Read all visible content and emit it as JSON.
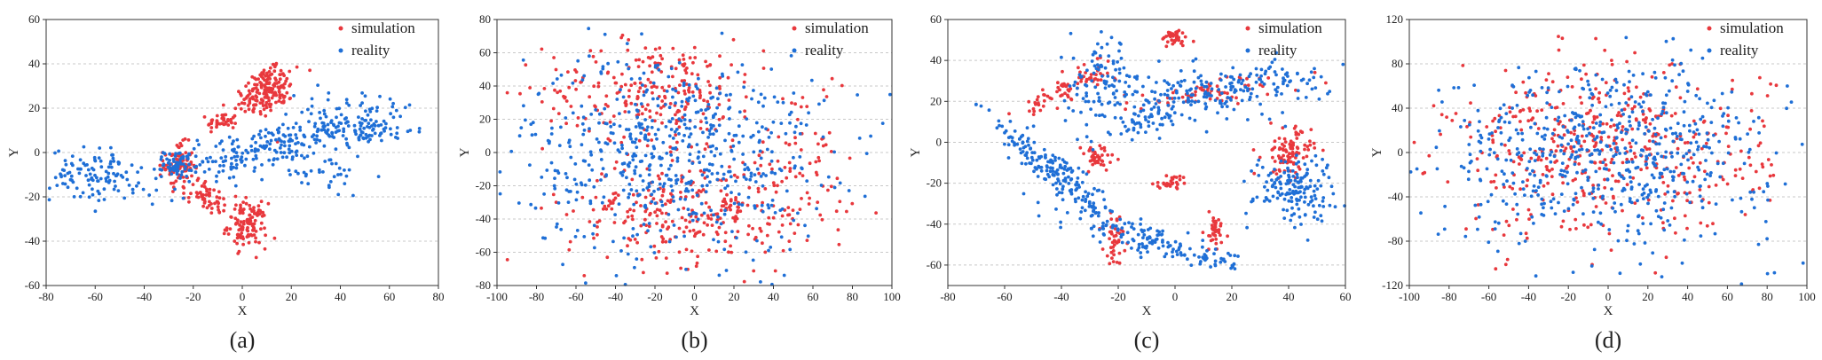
{
  "figure": {
    "colors": {
      "simulation": "#e8383d",
      "reality": "#1f6fd6",
      "grid": "#c8c8c8",
      "axis": "#333333"
    }
  },
  "chart_data": [
    {
      "type": "scatter",
      "panel_label": "(a)",
      "xlabel": "X",
      "ylabel": "Y",
      "xlim": [
        -80,
        80
      ],
      "ylim": [
        -60,
        60
      ],
      "xticks": [
        -80,
        -60,
        -40,
        -20,
        0,
        20,
        40,
        60,
        80
      ],
      "yticks": [
        -60,
        -40,
        -20,
        0,
        20,
        40,
        60
      ],
      "grid": "horizontal-dashed",
      "legend": "top-right",
      "series": [
        {
          "name": "simulation",
          "color": "#e8383d",
          "clusters": [
            {
              "x": 10,
              "y": 28,
              "sx": 7,
              "sy": 5,
              "n": 180,
              "angle": 38
            },
            {
              "x": -8,
              "y": 14,
              "sx": 3,
              "sy": 2,
              "n": 40,
              "angle": 0
            },
            {
              "x": -26,
              "y": -6,
              "sx": 3,
              "sy": 5,
              "n": 90,
              "angle": 0
            },
            {
              "x": -14,
              "y": -20,
              "sx": 5,
              "sy": 3,
              "n": 60,
              "angle": -30
            },
            {
              "x": 2,
              "y": -33,
              "sx": 4,
              "sy": 5,
              "n": 120,
              "angle": 0
            }
          ]
        },
        {
          "name": "reality",
          "color": "#1f6fd6",
          "clusters": [
            {
              "x": -60,
              "y": -10,
              "sx": 9,
              "sy": 6,
              "n": 110,
              "angle": 0
            },
            {
              "x": -26,
              "y": -5,
              "sx": 3,
              "sy": 3,
              "n": 60,
              "angle": 0
            },
            {
              "x": 10,
              "y": 2,
              "sx": 25,
              "sy": 5,
              "n": 220,
              "angle": 18
            },
            {
              "x": 50,
              "y": 10,
              "sx": 10,
              "sy": 3,
              "n": 80,
              "angle": 0
            },
            {
              "x": 28,
              "y": -10,
              "sx": 12,
              "sy": 5,
              "n": 40,
              "angle": 0
            },
            {
              "x": 45,
              "y": 20,
              "sx": 12,
              "sy": 5,
              "n": 30,
              "angle": 0
            }
          ]
        }
      ]
    },
    {
      "type": "scatter",
      "panel_label": "(b)",
      "xlabel": "X",
      "ylabel": "Y",
      "xlim": [
        -100,
        100
      ],
      "ylim": [
        -80,
        80
      ],
      "xticks": [
        -100,
        -80,
        -60,
        -40,
        -20,
        0,
        20,
        40,
        60,
        80,
        100
      ],
      "yticks": [
        -80,
        -60,
        -40,
        -20,
        0,
        20,
        40,
        60,
        80
      ],
      "grid": "horizontal-dashed",
      "legend": "top-right",
      "series": [
        {
          "name": "simulation",
          "color": "#e8383d",
          "clusters": [
            {
              "x": -20,
              "y": 38,
              "sx": 28,
              "sy": 15,
              "n": 240,
              "angle": 0
            },
            {
              "x": 0,
              "y": -35,
              "sx": 32,
              "sy": 16,
              "n": 300,
              "angle": 0
            },
            {
              "x": 55,
              "y": -5,
              "sx": 12,
              "sy": 25,
              "n": 60,
              "angle": 0
            }
          ]
        },
        {
          "name": "reality",
          "color": "#1f6fd6",
          "clusters": [
            {
              "x": -10,
              "y": 0,
              "sx": 38,
              "sy": 30,
              "n": 600,
              "angle": 0
            }
          ]
        }
      ]
    },
    {
      "type": "scatter",
      "panel_label": "(c)",
      "xlabel": "X",
      "ylabel": "Y",
      "xlim": [
        -80,
        60
      ],
      "ylim": [
        -70,
        60
      ],
      "xticks": [
        -80,
        -60,
        -40,
        -20,
        0,
        20,
        40,
        60
      ],
      "yticks": [
        -60,
        -40,
        -20,
        0,
        20,
        40,
        60
      ],
      "grid": "horizontal-dashed",
      "legend": "top-right",
      "series": [
        {
          "name": "simulation",
          "color": "#e8383d",
          "clusters": [
            {
              "x": 0,
              "y": 51,
              "sx": 2.5,
              "sy": 2,
              "n": 40,
              "angle": 0
            },
            {
              "x": -42,
              "y": 24,
              "sx": 6,
              "sy": 2.5,
              "n": 50,
              "angle": 35
            },
            {
              "x": -29,
              "y": 33,
              "sx": 4,
              "sy": 3,
              "n": 30,
              "angle": 0
            },
            {
              "x": -28,
              "y": -8,
              "sx": 3.5,
              "sy": 3.5,
              "n": 40,
              "angle": 0
            },
            {
              "x": 15,
              "y": 25,
              "sx": 15,
              "sy": 3,
              "n": 70,
              "angle": 12
            },
            {
              "x": 40,
              "y": -5,
              "sx": 4,
              "sy": 6,
              "n": 100,
              "angle": 0
            },
            {
              "x": -4,
              "y": -21,
              "sx": 2.5,
              "sy": 1,
              "n": 15,
              "angle": 0
            },
            {
              "x": 0,
              "y": -19,
              "sx": 1.5,
              "sy": 1.5,
              "n": 15,
              "angle": 0
            },
            {
              "x": -21,
              "y": -47,
              "sx": 2,
              "sy": 6,
              "n": 40,
              "angle": 0
            },
            {
              "x": 14,
              "y": -43,
              "sx": 2,
              "sy": 5,
              "n": 40,
              "angle": 0
            }
          ]
        },
        {
          "name": "reality",
          "color": "#1f6fd6",
          "clusters": [
            {
              "x": -42,
              "y": -15,
              "sx": 20,
              "sy": 3,
              "n": 200,
              "angle": -50
            },
            {
              "x": -5,
              "y": -50,
              "sx": 18,
              "sy": 3,
              "n": 140,
              "angle": -22
            },
            {
              "x": -25,
              "y": 30,
              "sx": 6,
              "sy": 10,
              "n": 90,
              "angle": 0
            },
            {
              "x": -12,
              "y": 10,
              "sx": 8,
              "sy": 3,
              "n": 50,
              "angle": 30
            },
            {
              "x": 15,
              "y": 25,
              "sx": 20,
              "sy": 6,
              "n": 220,
              "angle": 10
            },
            {
              "x": 42,
              "y": -22,
              "sx": 7,
              "sy": 8,
              "n": 160,
              "angle": 0
            }
          ]
        }
      ]
    },
    {
      "type": "scatter",
      "panel_label": "(d)",
      "xlabel": "X",
      "ylabel": "Y",
      "xlim": [
        -100,
        100
      ],
      "ylim": [
        -120,
        120
      ],
      "xticks": [
        -100,
        -80,
        -60,
        -40,
        -20,
        0,
        20,
        40,
        60,
        80,
        100
      ],
      "yticks": [
        -120,
        -80,
        -40,
        0,
        40,
        80,
        120
      ],
      "grid": "horizontal-dashed",
      "legend": "top-right",
      "series": [
        {
          "name": "simulation",
          "color": "#e8383d",
          "clusters": [
            {
              "x": 0,
              "y": 0,
              "sx": 40,
              "sy": 38,
              "n": 480,
              "angle": 0
            }
          ]
        },
        {
          "name": "reality",
          "color": "#1f6fd6",
          "clusters": [
            {
              "x": 0,
              "y": 0,
              "sx": 42,
              "sy": 40,
              "n": 620,
              "angle": 0
            }
          ]
        }
      ]
    }
  ]
}
